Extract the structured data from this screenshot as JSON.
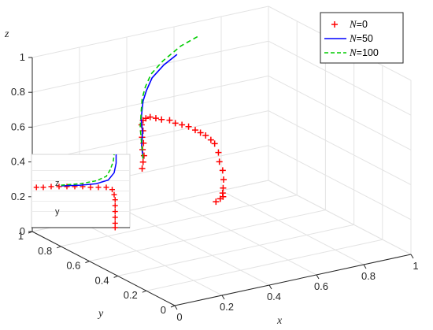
{
  "chart_data": {
    "type": "line",
    "axes": {
      "x": {
        "label": "x",
        "range": [
          0,
          1
        ],
        "ticks": [
          "0",
          "0.2",
          "0.4",
          "0.6",
          "0.8",
          "1"
        ]
      },
      "y": {
        "label": "y",
        "range": [
          0,
          1
        ],
        "ticks": [
          "0",
          "0.2",
          "0.4",
          "0.6",
          "0.8",
          "1"
        ]
      },
      "z": {
        "label": "z",
        "range": [
          0,
          1
        ],
        "ticks": [
          "0",
          "0.2",
          "0.4",
          "0.6",
          "0.8",
          "1"
        ]
      }
    },
    "grid": true,
    "legend_position": "top-right",
    "series": [
      {
        "name": "N=0",
        "name_var": "N",
        "name_rest": "=0",
        "color": "#ff0000",
        "style": "markers",
        "marker": "+",
        "points": [
          [
            0.47,
            0.49,
            0.25
          ],
          [
            0.47,
            0.46,
            0.28
          ],
          [
            0.47,
            0.44,
            0.3
          ],
          [
            0.45,
            0.41,
            0.34
          ],
          [
            0.44,
            0.39,
            0.38
          ],
          [
            0.43,
            0.37,
            0.44
          ],
          [
            0.42,
            0.36,
            0.5
          ],
          [
            0.4,
            0.35,
            0.56
          ],
          [
            0.39,
            0.34,
            0.62
          ],
          [
            0.38,
            0.35,
            0.67
          ],
          [
            0.37,
            0.36,
            0.69
          ],
          [
            0.36,
            0.38,
            0.71
          ],
          [
            0.35,
            0.4,
            0.72
          ],
          [
            0.34,
            0.42,
            0.73
          ],
          [
            0.33,
            0.45,
            0.74
          ],
          [
            0.32,
            0.48,
            0.74
          ],
          [
            0.31,
            0.51,
            0.74
          ],
          [
            0.31,
            0.55,
            0.74
          ],
          [
            0.3,
            0.59,
            0.73
          ],
          [
            0.3,
            0.63,
            0.72
          ],
          [
            0.3,
            0.67,
            0.71
          ],
          [
            0.3,
            0.7,
            0.69
          ],
          [
            0.3,
            0.72,
            0.67
          ],
          [
            0.3,
            0.73,
            0.64
          ],
          [
            0.3,
            0.72,
            0.61
          ],
          [
            0.29,
            0.71,
            0.58
          ],
          [
            0.29,
            0.7,
            0.55
          ],
          [
            0.28,
            0.69,
            0.52
          ],
          [
            0.28,
            0.68,
            0.49
          ],
          [
            0.27,
            0.67,
            0.46
          ],
          [
            0.26,
            0.66,
            0.43
          ]
        ]
      },
      {
        "name": "N=50",
        "name_var": "N",
        "name_rest": "=50",
        "color": "#0000ff",
        "style": "solid",
        "marker": "",
        "points": [
          [
            0.27,
            0.67,
            0.48
          ],
          [
            0.27,
            0.68,
            0.55
          ],
          [
            0.28,
            0.69,
            0.62
          ],
          [
            0.28,
            0.7,
            0.69
          ],
          [
            0.29,
            0.71,
            0.74
          ],
          [
            0.3,
            0.72,
            0.78
          ],
          [
            0.32,
            0.73,
            0.83
          ],
          [
            0.35,
            0.74,
            0.89
          ],
          [
            0.4,
            0.74,
            0.95
          ],
          [
            0.45,
            0.73,
            1.0
          ]
        ]
      },
      {
        "name": "N=100",
        "name_var": "N",
        "name_rest": "=100",
        "color": "#00cc00",
        "style": "dashed",
        "marker": "",
        "points": [
          [
            0.27,
            0.67,
            0.48
          ],
          [
            0.27,
            0.68,
            0.56
          ],
          [
            0.27,
            0.69,
            0.65
          ],
          [
            0.28,
            0.7,
            0.73
          ],
          [
            0.29,
            0.71,
            0.8
          ],
          [
            0.31,
            0.72,
            0.86
          ],
          [
            0.34,
            0.73,
            0.92
          ],
          [
            0.39,
            0.73,
            0.98
          ],
          [
            0.46,
            0.72,
            1.05
          ],
          [
            0.53,
            0.7,
            1.1
          ]
        ]
      }
    ],
    "inset": {
      "labels": [
        "z",
        "y"
      ],
      "series": [
        {
          "name": "N=0",
          "points": [
            [
              0.05,
              0.55
            ],
            [
              0.12,
              0.55
            ],
            [
              0.2,
              0.56
            ],
            [
              0.28,
              0.56
            ],
            [
              0.36,
              0.56
            ],
            [
              0.44,
              0.56
            ],
            [
              0.52,
              0.56
            ],
            [
              0.6,
              0.55
            ],
            [
              0.68,
              0.55
            ],
            [
              0.76,
              0.55
            ],
            [
              0.82,
              0.52
            ],
            [
              0.84,
              0.45
            ],
            [
              0.85,
              0.38
            ],
            [
              0.85,
              0.3
            ],
            [
              0.85,
              0.22
            ],
            [
              0.85,
              0.14
            ],
            [
              0.85,
              0.06
            ],
            [
              0.85,
              0.0
            ]
          ]
        },
        {
          "name": "N=50",
          "points": [
            [
              0.3,
              0.57
            ],
            [
              0.5,
              0.58
            ],
            [
              0.66,
              0.6
            ],
            [
              0.78,
              0.65
            ],
            [
              0.84,
              0.75
            ],
            [
              0.86,
              0.88
            ],
            [
              0.86,
              1.0
            ]
          ]
        },
        {
          "name": "N=100",
          "points": [
            [
              0.3,
              0.58
            ],
            [
              0.5,
              0.6
            ],
            [
              0.66,
              0.64
            ],
            [
              0.76,
              0.7
            ],
            [
              0.8,
              0.79
            ],
            [
              0.83,
              0.9
            ],
            [
              0.84,
              1.0
            ]
          ]
        }
      ]
    }
  }
}
